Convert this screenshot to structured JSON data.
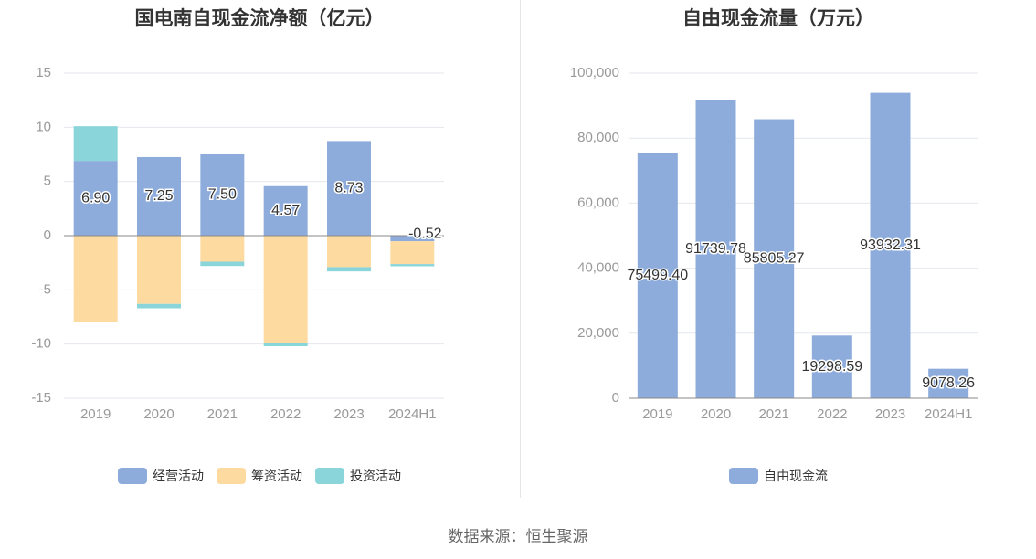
{
  "source": "数据来源：恒生聚源",
  "chart_data": [
    {
      "type": "bar",
      "stacked": true,
      "title": "国电南自现金流净额（亿元）",
      "categories": [
        "2019",
        "2020",
        "2021",
        "2022",
        "2023",
        "2024H1"
      ],
      "ylim": [
        -15,
        15
      ],
      "yticks": [
        15,
        10,
        5,
        0,
        -5,
        -10,
        -15
      ],
      "grid": true,
      "legend_position": "bottom",
      "series": [
        {
          "name": "经营活动",
          "color": "#8eacdb",
          "values": [
            6.9,
            7.25,
            7.5,
            4.57,
            8.73,
            -0.52
          ],
          "labels": [
            "6.90",
            "7.25",
            "7.50",
            "4.57",
            "8.73",
            "-0.52"
          ]
        },
        {
          "name": "筹资活动",
          "color": "#fddba0",
          "values": [
            -8.0,
            -6.3,
            -2.4,
            -9.9,
            -2.9,
            -2.1
          ]
        },
        {
          "name": "投资活动",
          "color": "#8ad5da",
          "values": [
            3.2,
            -0.4,
            -0.4,
            -0.3,
            -0.4,
            -0.2
          ]
        }
      ]
    },
    {
      "type": "bar",
      "title": "自由现金流量（万元）",
      "categories": [
        "2019",
        "2020",
        "2021",
        "2022",
        "2023",
        "2024H1"
      ],
      "ylim": [
        0,
        100000
      ],
      "yticks": [
        "100,000",
        "80,000",
        "60,000",
        "40,000",
        "20,000",
        "0"
      ],
      "grid": true,
      "legend_position": "bottom",
      "series": [
        {
          "name": "自由现金流",
          "color": "#8eacdb",
          "values": [
            75499.4,
            91739.78,
            85805.27,
            19298.59,
            93932.31,
            9078.26
          ],
          "labels": [
            "75499.40",
            "91739.78",
            "85805.27",
            "19298.59",
            "93932.31",
            "9078.26"
          ]
        }
      ]
    }
  ]
}
